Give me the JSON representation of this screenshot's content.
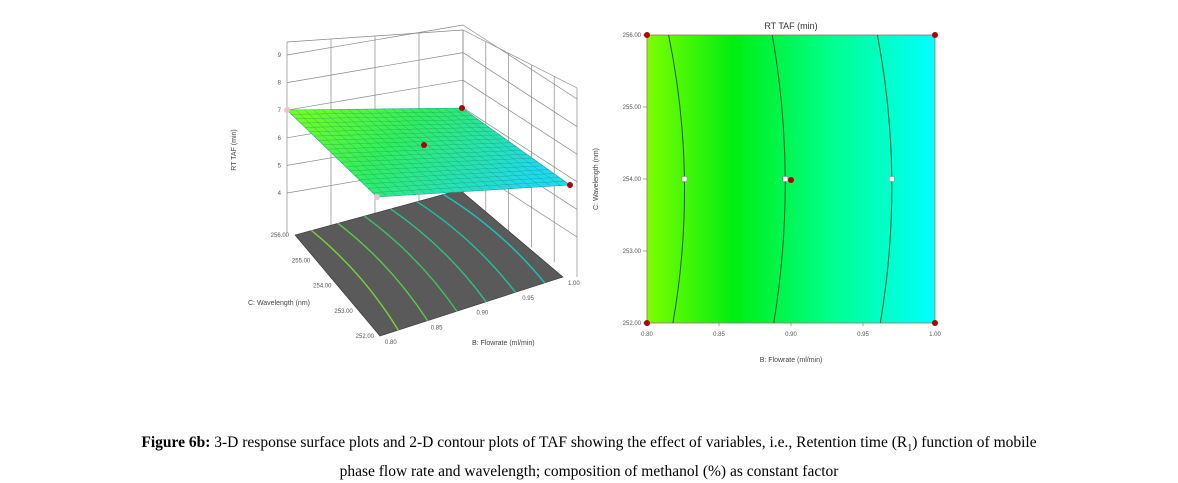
{
  "chart_data": [
    {
      "type": "surface",
      "title": "",
      "zlabel": "RT TAF (min)",
      "xlabel": "B: Flowrate (ml/min)",
      "ylabel": "C: Wavelength (nm)",
      "z_ticks": [
        "4",
        "5",
        "6",
        "7",
        "8",
        "9"
      ],
      "zlim": [
        4,
        9
      ],
      "x_ticks": [
        "0.80",
        "0.85",
        "0.90",
        "0.95",
        "1.00"
      ],
      "y_ticks": [
        "252.00",
        "253.00",
        "254.00",
        "255.00",
        "256.00"
      ],
      "corner_values": [
        {
          "flowrate": 0.8,
          "wavelength": 256,
          "rt": 7.0
        },
        {
          "flowrate": 1.0,
          "wavelength": 256,
          "rt": 6.0
        },
        {
          "flowrate": 1.0,
          "wavelength": 252,
          "rt": 4.8
        },
        {
          "flowrate": 0.8,
          "wavelength": 252,
          "rt": 5.6
        }
      ],
      "center_point": {
        "flowrate": 0.9,
        "wavelength": 254,
        "rt": 5.9
      },
      "colors": {
        "low": "#00e5ff",
        "high": "#7cff00",
        "floor": "#5a5a5a"
      }
    },
    {
      "type": "contour",
      "title": "RT TAF (min)",
      "xlabel": "B: Flowrate (ml/min)",
      "ylabel": "C: Wavelength (nm)",
      "xlim": [
        0.8,
        1.0
      ],
      "ylim": [
        252,
        256
      ],
      "x_ticks": [
        "0.80",
        "0.85",
        "0.90",
        "0.95",
        "1.00"
      ],
      "y_ticks": [
        "252.00",
        "253.00",
        "254.00",
        "255.00",
        "256.00"
      ],
      "contours": [
        {
          "x_top": 0.815,
          "x_mid": 0.826,
          "x_bottom": 0.818
        },
        {
          "x_top": 0.887,
          "x_mid": 0.896,
          "x_bottom": 0.888
        },
        {
          "x_top": 0.96,
          "x_mid": 0.97,
          "x_bottom": 0.962
        }
      ],
      "design_points": [
        {
          "x": 0.8,
          "y": 256
        },
        {
          "x": 1.0,
          "y": 256
        },
        {
          "x": 0.8,
          "y": 252
        },
        {
          "x": 1.0,
          "y": 252
        },
        {
          "x": 0.9,
          "y": 254
        }
      ],
      "flag_points": [
        {
          "x": 0.826,
          "y": 254
        },
        {
          "x": 0.896,
          "y": 254
        },
        {
          "x": 0.97,
          "y": 254
        }
      ],
      "colors": {
        "left": "#7cff00",
        "mid": "#00ee10",
        "right": "#00ffff",
        "point": "#b00000"
      }
    }
  ],
  "caption": {
    "label": "Figure 6b:",
    "text_line1": " 3-D response surface plots and 2-D contour plots of TAF showing the effect of variables, i.e., Retention time (R",
    "subscript": "1",
    "text_line1_end": ") function of mobile",
    "text_line2": "phase flow rate and wavelength; composition of methanol (%) as constant factor"
  }
}
